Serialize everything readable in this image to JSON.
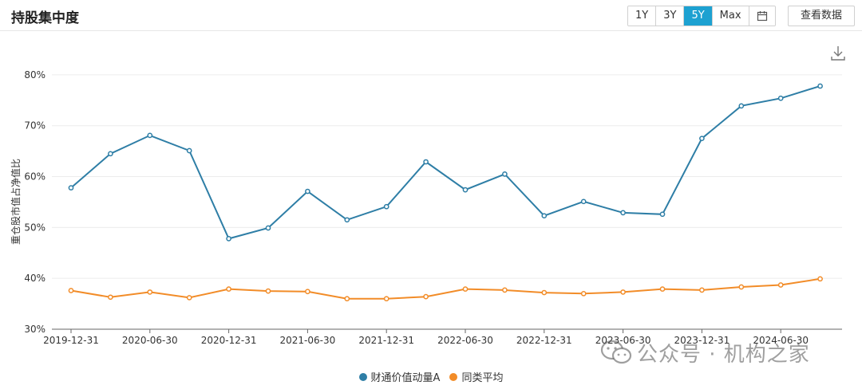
{
  "header": {
    "title": "持股集中度",
    "ranges": [
      "1Y",
      "3Y",
      "5Y",
      "Max"
    ],
    "active_range": "5Y",
    "view_data_label": "查看数据"
  },
  "watermark": {
    "text": "公众号 · 机构之家"
  },
  "chart_data": {
    "type": "line",
    "ylabel": "重仓股市值占净值比",
    "ylim": [
      30,
      85
    ],
    "y_ticks": [
      30,
      40,
      50,
      60,
      70,
      80
    ],
    "y_tick_labels": [
      "30%",
      "40%",
      "50%",
      "60%",
      "70%",
      "80%"
    ],
    "grid": "horizontal",
    "x_labels": [
      "2019-12-31",
      "2020-06-30",
      "2020-12-31",
      "2021-06-30",
      "2021-12-31",
      "2022-06-30",
      "2022-12-31",
      "2023-06-30",
      "2023-12-31",
      "2024-06-30"
    ],
    "x": [
      "2019-12-31",
      "2020-03-31",
      "2020-06-30",
      "2020-09-30",
      "2020-12-31",
      "2021-03-31",
      "2021-06-30",
      "2021-09-30",
      "2021-12-31",
      "2022-03-31",
      "2022-06-30",
      "2022-09-30",
      "2022-12-31",
      "2023-03-31",
      "2023-06-30",
      "2023-09-30",
      "2023-12-31",
      "2024-03-31",
      "2024-06-30",
      "2024-09-30"
    ],
    "legend_position": "bottom",
    "series": [
      {
        "name": "财通价值动量A",
        "color": "#2e7ea6",
        "values": [
          57.8,
          64.5,
          68.1,
          65.1,
          47.8,
          49.9,
          57.1,
          51.5,
          54.1,
          62.9,
          57.4,
          60.5,
          52.3,
          55.1,
          52.9,
          52.6,
          67.5,
          73.9,
          75.4,
          77.8
        ]
      },
      {
        "name": "同类平均",
        "color": "#f28c28",
        "values": [
          37.6,
          36.3,
          37.3,
          36.2,
          37.9,
          37.5,
          37.4,
          36.0,
          36.0,
          36.4,
          37.9,
          37.7,
          37.2,
          37.0,
          37.3,
          37.9,
          37.7,
          38.3,
          38.7,
          39.9
        ]
      }
    ]
  }
}
